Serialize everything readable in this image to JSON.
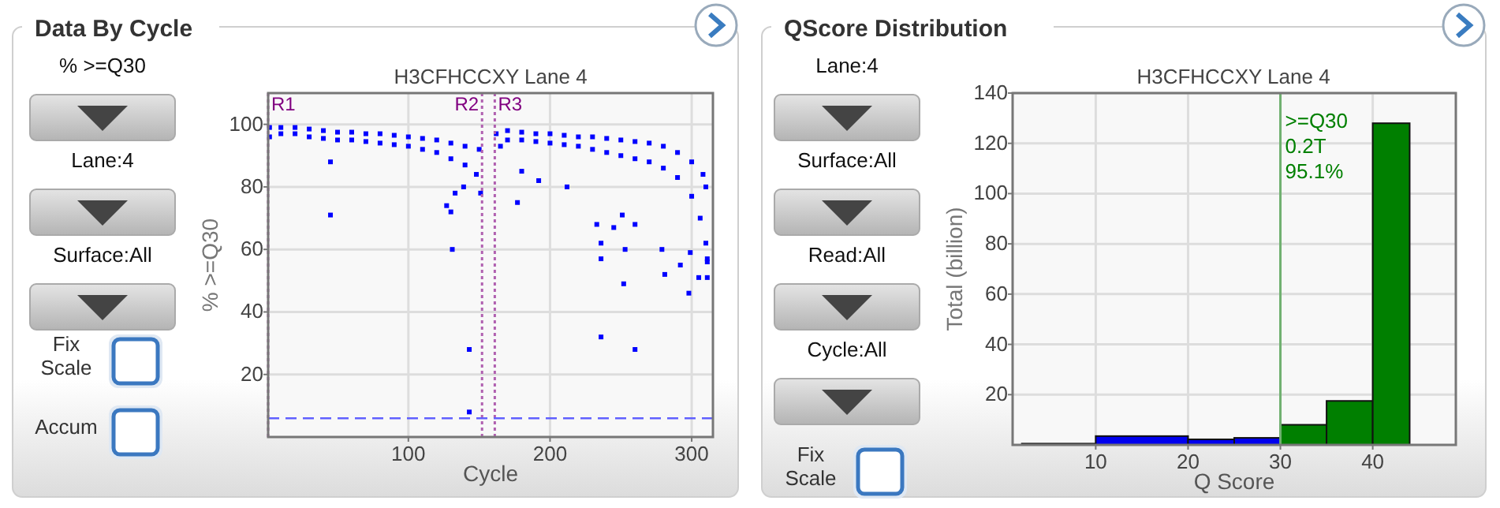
{
  "chart_data": [
    {
      "type": "other",
      "title": "Data By Cycle",
      "categories": [
        "% >=Q30",
        "Lane:4",
        "Surface:All"
      ],
      "annotations": [
        "Fix Scale",
        "Accum"
      ]
    },
    {
      "type": "scatter",
      "title": "H3CFHCCXY Lane 4",
      "xlabel": "Cycle",
      "ylabel": "% >=Q30",
      "marker": "square",
      "grid": true,
      "xlim": [
        1,
        315
      ],
      "xticks": [
        100,
        200,
        300
      ],
      "ylim": [
        0,
        110
      ],
      "yticks": [
        20,
        40,
        60,
        80,
        100
      ],
      "series": [
        {
          "color": "#0000ff",
          "x": [
            2,
            10,
            20,
            30,
            40,
            50,
            60,
            70,
            80,
            90,
            100,
            110,
            120,
            130,
            140,
            150,
            2,
            10,
            20,
            30,
            40,
            50,
            60,
            70,
            80,
            90,
            100,
            110,
            120,
            130,
            140,
            148,
            151,
            162,
            170,
            180,
            190,
            200,
            210,
            220,
            230,
            240,
            250,
            260,
            270,
            280,
            290,
            300,
            308,
            310,
            165,
            170,
            180,
            190,
            200,
            210,
            220,
            230,
            240,
            250,
            260,
            270,
            280,
            290,
            300,
            306,
            310,
            311,
            45,
            45,
            131,
            143,
            143,
            127,
            130,
            139,
            133,
            177,
            180,
            192,
            212,
            233,
            236,
            236,
            245,
            251,
            253,
            252,
            236,
            260,
            260,
            279,
            281,
            292,
            298,
            305,
            311,
            311,
            299
          ],
          "values": [
            99,
            99,
            99,
            98.5,
            98,
            97.5,
            97.5,
            97,
            97,
            96.5,
            96,
            95.5,
            95,
            94,
            93,
            92,
            96,
            97,
            97,
            96,
            95.5,
            95,
            95,
            94.5,
            94,
            93.5,
            93,
            92,
            91,
            89,
            87,
            84,
            78,
            97,
            98,
            97.5,
            97,
            97,
            96.5,
            96,
            96,
            95.5,
            95,
            94.5,
            94,
            93,
            91,
            88,
            84,
            80,
            93,
            95,
            95,
            94.5,
            94,
            93.5,
            93,
            92,
            91,
            90,
            89,
            88,
            86,
            83,
            77,
            70,
            62,
            56,
            71,
            88,
            60,
            28,
            8,
            74,
            72,
            80,
            78,
            75,
            85,
            82,
            80,
            68,
            62,
            57,
            67,
            71,
            60,
            49,
            32,
            28,
            68,
            60,
            52,
            55,
            46,
            51,
            51,
            57,
            59
          ]
        }
      ],
      "ref_lines": [
        {
          "axis": "x",
          "value": 1,
          "label": "R1",
          "color": "#b060b0",
          "line_style": "dotted"
        },
        {
          "axis": "x",
          "value": 152,
          "label": "R2",
          "color": "#b060b0",
          "line_style": "dotted"
        },
        {
          "axis": "x",
          "value": 161,
          "label": "R3",
          "color": "#b060b0",
          "line_style": "dotted"
        },
        {
          "axis": "y",
          "value": 6,
          "color": "#6060ff",
          "line_style": "dashed"
        }
      ]
    },
    {
      "type": "other",
      "title": "QScore Distribution",
      "categories": [
        "Lane:4",
        "Surface:All",
        "Read:All",
        "Cycle:All"
      ],
      "annotations": [
        "Fix Scale"
      ]
    },
    {
      "type": "histogram",
      "title": "H3CFHCCXY Lane 4",
      "xlabel": "Q Score",
      "ylabel": "Total (billion)",
      "grid": true,
      "bins": [
        2,
        10,
        20,
        25,
        30,
        35,
        40,
        44
      ],
      "values": [
        0.5,
        3.5,
        2.2,
        2.8,
        8,
        17.5,
        128
      ],
      "colors": [
        "#0000ee",
        "#0000ee",
        "#0000ee",
        "#0000ee",
        "#007f00",
        "#007f00",
        "#007f00"
      ],
      "xlim": [
        1,
        49
      ],
      "xticks": [
        10,
        20,
        30,
        40
      ],
      "ylim": [
        0,
        140
      ],
      "yticks": [
        20,
        40,
        60,
        80,
        100,
        120,
        140
      ],
      "ref_lines": [
        {
          "axis": "x",
          "value": 30,
          "color": "#70b070",
          "line_style": "solid"
        }
      ],
      "annotations": [
        ">=Q30",
        "0.2T",
        "95.1%"
      ]
    }
  ]
}
